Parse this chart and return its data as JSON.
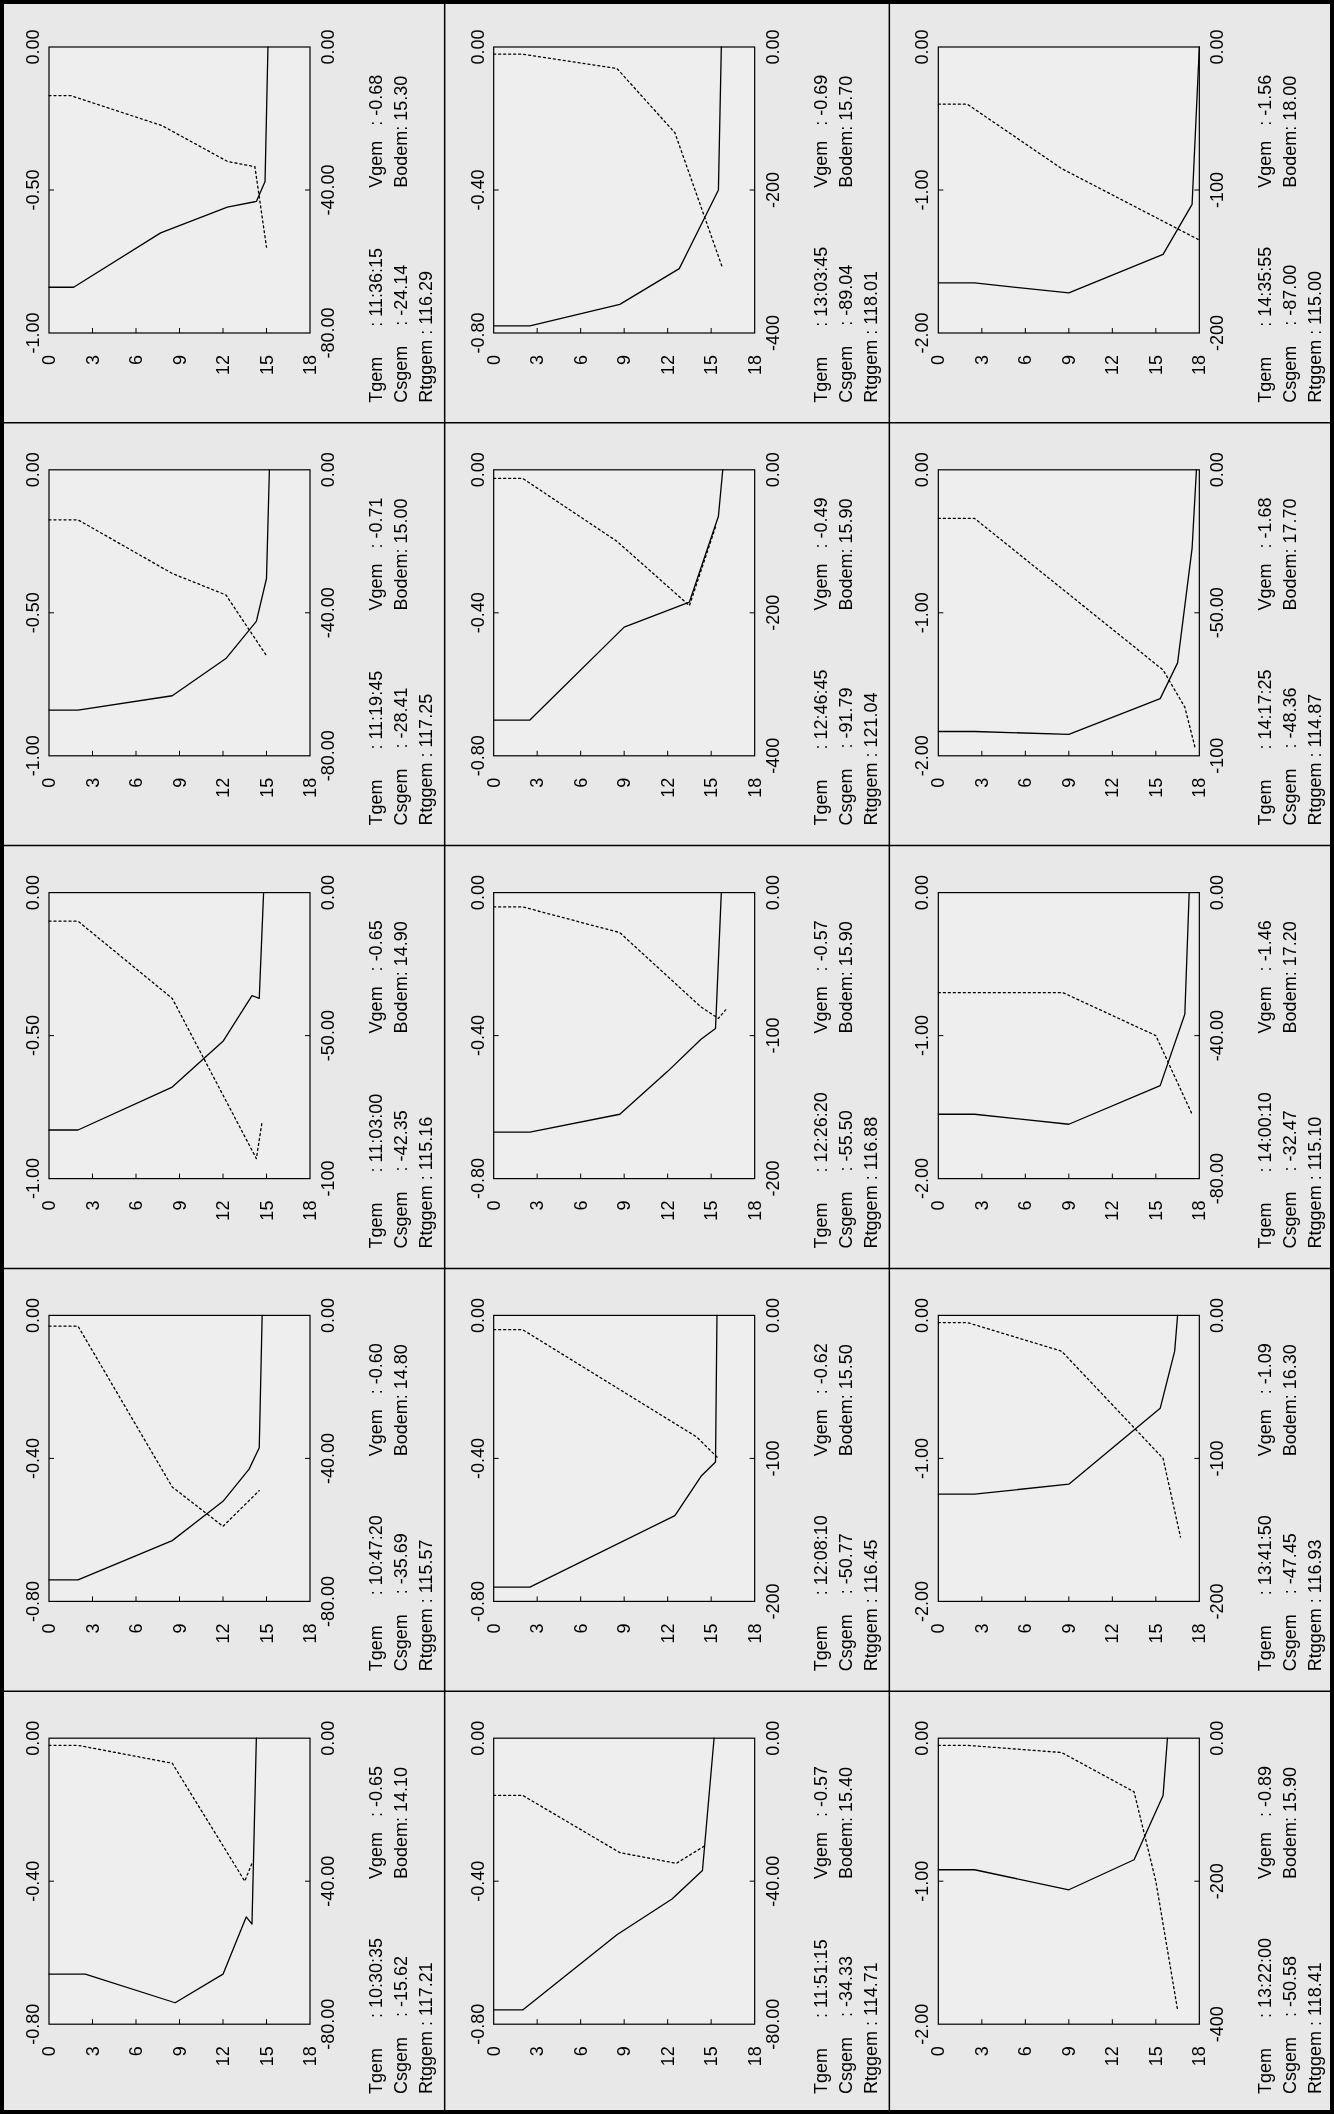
{
  "chart_data": [
    {
      "type": "line",
      "ylim": [
        -1,
        0
      ],
      "yticks": [
        {
          "value": -1,
          "label": "-1.00"
        },
        {
          "value": -0.5,
          "label": "-0.50"
        },
        {
          "value": 0,
          "label": "0.00"
        }
      ],
      "y2lim": [
        -80,
        0
      ],
      "y2ticks": [
        {
          "value": -80,
          "label": "-80.00"
        },
        {
          "value": -40,
          "label": "-40.00"
        },
        {
          "value": 0,
          "label": "0.00"
        }
      ],
      "xlim": [
        0,
        18
      ],
      "xticks": [
        0,
        3,
        6,
        9,
        12,
        15,
        18
      ],
      "series": [
        {
          "axis": "y",
          "color": "#000000",
          "line_style": "solid",
          "x": [
            0,
            1.7,
            7.7,
            12.3,
            14.3,
            14.9,
            15.1
          ],
          "values": [
            -0.84,
            -0.84,
            -0.65,
            -0.56,
            -0.54,
            -0.47,
            0
          ]
        },
        {
          "axis": "y2",
          "color": "#000000",
          "line_style": "dotted",
          "x": [
            0,
            1.5,
            7.8,
            12.3,
            14.2,
            15
          ],
          "values": [
            -13.6,
            -13.6,
            -22,
            -32,
            -33.5,
            -56
          ]
        }
      ],
      "annotations": [
        "Tgem      : 11:36:15",
        "Vgem   : -0.68",
        "Csgem    : -24.14",
        "Bodem: 15.30",
        "Rtggem : 116.29"
      ]
    },
    {
      "type": "line",
      "ylim": [
        -0.8,
        0
      ],
      "yticks": [
        {
          "value": -0.8,
          "label": "-0.80"
        },
        {
          "value": -0.4,
          "label": "-0.40"
        },
        {
          "value": 0,
          "label": "0.00"
        }
      ],
      "y2lim": [
        -400,
        0
      ],
      "y2ticks": [
        -400,
        -200,
        {
          "value": 0,
          "label": "0.00"
        }
      ],
      "xlim": [
        0,
        18
      ],
      "xticks": [
        0,
        3,
        6,
        9,
        12,
        15,
        18
      ],
      "series": [
        {
          "axis": "y",
          "color": "#000000",
          "line_style": "solid",
          "x": [
            0,
            2.5,
            8.7,
            12.8,
            15.5,
            15.7
          ],
          "values": [
            -0.78,
            -0.78,
            -0.72,
            -0.62,
            -0.4,
            0
          ]
        },
        {
          "axis": "y2",
          "color": "#000000",
          "line_style": "dotted",
          "x": [
            0,
            2,
            8.5,
            12.5,
            15.8
          ],
          "values": [
            -10,
            -10,
            -30,
            -120,
            -310
          ]
        }
      ],
      "annotations": [
        "Tgem      : 13:03:45",
        "Vgem   : -0.69",
        "Csgem    : -89.04",
        "Bodem: 15.70",
        "Rtggem : 118.01"
      ]
    },
    {
      "type": "line",
      "ylim": [
        -2,
        0
      ],
      "yticks": [
        {
          "value": -2,
          "label": "-2.00"
        },
        {
          "value": -1,
          "label": "-1.00"
        },
        {
          "value": 0,
          "label": "0.00"
        }
      ],
      "y2lim": [
        -200,
        0
      ],
      "y2ticks": [
        -200,
        -100,
        {
          "value": 0,
          "label": "0.00"
        }
      ],
      "xlim": [
        0,
        18
      ],
      "xticks": [
        0,
        3,
        6,
        9,
        12,
        15,
        18
      ],
      "series": [
        {
          "axis": "y",
          "color": "#000000",
          "line_style": "solid",
          "x": [
            0,
            2.5,
            9,
            15.5,
            17.5,
            18
          ],
          "values": [
            -1.65,
            -1.65,
            -1.72,
            -1.45,
            -1.1,
            0
          ]
        },
        {
          "axis": "y2",
          "color": "#000000",
          "line_style": "dotted",
          "x": [
            0,
            2,
            8.5,
            18
          ],
          "values": [
            -40,
            -40,
            -85,
            -135
          ]
        }
      ],
      "annotations": [
        "Tgem      : 14:35:55",
        "Vgem   : -1.56",
        "Csgem    : -87.00",
        "Bodem: 18.00",
        "Rtggem : 115.00"
      ]
    },
    {
      "type": "line",
      "ylim": [
        -1,
        0
      ],
      "yticks": [
        {
          "value": -1,
          "label": "-1.00"
        },
        {
          "value": -0.5,
          "label": "-0.50"
        },
        {
          "value": 0,
          "label": "0.00"
        }
      ],
      "y2lim": [
        -80,
        0
      ],
      "y2ticks": [
        {
          "value": -80,
          "label": "-80.00"
        },
        {
          "value": -40,
          "label": "-40.00"
        },
        {
          "value": 0,
          "label": "0.00"
        }
      ],
      "xlim": [
        0,
        18
      ],
      "xticks": [
        0,
        3,
        6,
        9,
        12,
        15,
        18
      ],
      "series": [
        {
          "axis": "y",
          "color": "#000000",
          "line_style": "solid",
          "x": [
            0,
            2,
            8.5,
            12.2,
            14.3,
            15,
            15.2
          ],
          "values": [
            -0.84,
            -0.84,
            -0.79,
            -0.66,
            -0.53,
            -0.38,
            0
          ]
        },
        {
          "axis": "y2",
          "color": "#000000",
          "line_style": "dotted",
          "x": [
            0,
            2,
            8.5,
            12.2,
            15
          ],
          "values": [
            -14,
            -14,
            -29,
            -35,
            -52
          ]
        }
      ],
      "annotations": [
        "Tgem      : 11:19:45",
        "Vgem   : -0.71",
        "Csgem    : -28.41",
        "Bodem: 15.00",
        "Rtggem : 117.25"
      ]
    },
    {
      "type": "line",
      "ylim": [
        -0.8,
        0
      ],
      "yticks": [
        {
          "value": -0.8,
          "label": "-0.80"
        },
        {
          "value": -0.4,
          "label": "-0.40"
        },
        {
          "value": 0,
          "label": "0.00"
        }
      ],
      "y2lim": [
        -400,
        0
      ],
      "y2ticks": [
        -400,
        -200,
        {
          "value": 0,
          "label": "0.00"
        }
      ],
      "xlim": [
        0,
        18
      ],
      "xticks": [
        0,
        3,
        6,
        9,
        12,
        15,
        18
      ],
      "series": [
        {
          "axis": "y",
          "color": "#000000",
          "line_style": "solid",
          "x": [
            0,
            2.5,
            9,
            13.5,
            15.5,
            15.8
          ],
          "values": [
            -0.7,
            -0.7,
            -0.44,
            -0.37,
            -0.13,
            0
          ]
        },
        {
          "axis": "y2",
          "color": "#000000",
          "line_style": "dotted",
          "x": [
            0,
            2,
            8.5,
            13.5,
            15.3
          ],
          "values": [
            -12,
            -12,
            -100,
            -190,
            -80
          ]
        }
      ],
      "annotations": [
        "Tgem      : 12:46:45",
        "Vgem   : -0.49",
        "Csgem    : -91.79",
        "Bodem: 15.90",
        "Rtggem : 121.04"
      ]
    },
    {
      "type": "line",
      "ylim": [
        -2,
        0
      ],
      "yticks": [
        {
          "value": -2,
          "label": "-2.00"
        },
        {
          "value": -1,
          "label": "-1.00"
        },
        {
          "value": 0,
          "label": "0.00"
        }
      ],
      "y2lim": [
        -100,
        0
      ],
      "y2ticks": [
        -100,
        {
          "value": -50,
          "label": "-50.00"
        },
        {
          "value": 0,
          "label": "0.00"
        }
      ],
      "xlim": [
        0,
        18
      ],
      "xticks": [
        0,
        3,
        6,
        9,
        12,
        15,
        18
      ],
      "series": [
        {
          "axis": "y",
          "color": "#000000",
          "line_style": "solid",
          "x": [
            0,
            2.5,
            9,
            15.3,
            16.5,
            17.5,
            17.8
          ],
          "values": [
            -1.83,
            -1.83,
            -1.85,
            -1.6,
            -1.35,
            -0.55,
            0
          ]
        },
        {
          "axis": "y2",
          "color": "#000000",
          "line_style": "dotted",
          "x": [
            0,
            2.5,
            15.5,
            17,
            17.7
          ],
          "values": [
            -17,
            -17,
            -70,
            -83,
            -97
          ]
        }
      ],
      "annotations": [
        "Tgem      : 14:17:25",
        "Vgem   : -1.68",
        "Csgem    : -48.36",
        "Bodem: 17.70",
        "Rtggem : 114.87"
      ]
    },
    {
      "type": "line",
      "ylim": [
        -1,
        0
      ],
      "yticks": [
        {
          "value": -1,
          "label": "-1.00"
        },
        {
          "value": -0.5,
          "label": "-0.50"
        },
        {
          "value": 0,
          "label": "0.00"
        }
      ],
      "y2lim": [
        -100,
        0
      ],
      "y2ticks": [
        -100,
        {
          "value": -50,
          "label": "-50.00"
        },
        {
          "value": 0,
          "label": "0.00"
        }
      ],
      "xlim": [
        0,
        18
      ],
      "xticks": [
        0,
        3,
        6,
        9,
        12,
        15,
        18
      ],
      "series": [
        {
          "axis": "y",
          "color": "#000000",
          "line_style": "solid",
          "x": [
            0,
            2,
            8.5,
            12,
            14,
            14.5,
            14.8
          ],
          "values": [
            -0.83,
            -0.83,
            -0.68,
            -0.52,
            -0.36,
            -0.37,
            0
          ]
        },
        {
          "axis": "y2",
          "color": "#000000",
          "line_style": "dotted",
          "x": [
            0,
            2,
            8.5,
            14.3,
            14.7
          ],
          "values": [
            -10,
            -10,
            -37,
            -93,
            -80
          ]
        }
      ],
      "annotations": [
        "Tgem      : 11:03:00",
        "Vgem   : -0.65",
        "Csgem    : -42.35",
        "Bodem: 14.90",
        "Rtggem : 115.16"
      ]
    },
    {
      "type": "line",
      "ylim": [
        -0.8,
        0
      ],
      "yticks": [
        {
          "value": -0.8,
          "label": "-0.80"
        },
        {
          "value": -0.4,
          "label": "-0.40"
        },
        {
          "value": 0,
          "label": "0.00"
        }
      ],
      "y2lim": [
        -200,
        0
      ],
      "y2ticks": [
        -200,
        -100,
        {
          "value": 0,
          "label": "0.00"
        }
      ],
      "xlim": [
        0,
        18
      ],
      "xticks": [
        0,
        3,
        6,
        9,
        12,
        15,
        18
      ],
      "series": [
        {
          "axis": "y",
          "color": "#000000",
          "line_style": "solid",
          "x": [
            0,
            2.5,
            8.7,
            12,
            14.3,
            15.3,
            15.7
          ],
          "values": [
            -0.67,
            -0.67,
            -0.62,
            -0.5,
            -0.41,
            -0.38,
            0
          ]
        },
        {
          "axis": "y2",
          "color": "#000000",
          "line_style": "dotted",
          "x": [
            0,
            2,
            8.7,
            14.3,
            15.5,
            16
          ],
          "values": [
            -10,
            -10,
            -28,
            -80,
            -88,
            -82
          ]
        }
      ],
      "annotations": [
        "Tgem      : 12:26:20",
        "Vgem   : -0.57",
        "Csgem    : -55.50",
        "Bodem: 15.90",
        "Rtggem : 116.88"
      ]
    },
    {
      "type": "line",
      "ylim": [
        -2,
        0
      ],
      "yticks": [
        {
          "value": -2,
          "label": "-2.00"
        },
        {
          "value": -1,
          "label": "-1.00"
        },
        {
          "value": 0,
          "label": "0.00"
        }
      ],
      "y2lim": [
        -80,
        0
      ],
      "y2ticks": [
        {
          "value": -80,
          "label": "-80.00"
        },
        {
          "value": -40,
          "label": "-40.00"
        },
        {
          "value": 0,
          "label": "0.00"
        }
      ],
      "xlim": [
        0,
        18
      ],
      "xticks": [
        0,
        3,
        6,
        9,
        12,
        15,
        18
      ],
      "series": [
        {
          "axis": "y",
          "color": "#000000",
          "line_style": "solid",
          "x": [
            0,
            2.5,
            9,
            15.3,
            17,
            17.3
          ],
          "values": [
            -1.55,
            -1.55,
            -1.62,
            -1.35,
            -0.85,
            0
          ]
        },
        {
          "axis": "y2",
          "color": "#000000",
          "line_style": "dotted",
          "x": [
            0,
            8.6,
            15,
            17.5
          ],
          "values": [
            -28,
            -28,
            -40,
            -62
          ]
        }
      ],
      "annotations": [
        "Tgem      : 14:00:10",
        "Vgem   : -1.46",
        "Csgem    : -32.47",
        "Bodem: 17.20",
        "Rtggem : 115.10"
      ]
    },
    {
      "type": "line",
      "ylim": [
        -0.8,
        0
      ],
      "yticks": [
        {
          "value": -0.8,
          "label": "-0.80"
        },
        {
          "value": -0.4,
          "label": "-0.40"
        },
        {
          "value": 0,
          "label": "0.00"
        }
      ],
      "y2lim": [
        -80,
        0
      ],
      "y2ticks": [
        {
          "value": -80,
          "label": "-80.00"
        },
        {
          "value": -40,
          "label": "-40.00"
        },
        {
          "value": 0,
          "label": "0.00"
        }
      ],
      "xlim": [
        0,
        18
      ],
      "xticks": [
        0,
        3,
        6,
        9,
        12,
        15,
        18
      ],
      "series": [
        {
          "axis": "y",
          "color": "#000000",
          "line_style": "solid",
          "x": [
            0,
            2,
            8.5,
            12,
            13.8,
            14.5,
            14.7
          ],
          "values": [
            -0.74,
            -0.74,
            -0.63,
            -0.52,
            -0.43,
            -0.37,
            0
          ]
        },
        {
          "axis": "y2",
          "color": "#000000",
          "line_style": "dotted",
          "x": [
            0,
            2,
            8.5,
            12,
            14.5
          ],
          "values": [
            -3,
            -3,
            -48,
            -59,
            -49
          ]
        }
      ],
      "annotations": [
        "Tgem      : 10:47:20",
        "Vgem   : -0.60",
        "Csgem    : -35.69",
        "Bodem: 14.80",
        "Rtggem : 115.57"
      ]
    },
    {
      "type": "line",
      "ylim": [
        -0.8,
        0
      ],
      "yticks": [
        {
          "value": -0.8,
          "label": "-0.80"
        },
        {
          "value": -0.4,
          "label": "-0.40"
        },
        {
          "value": 0,
          "label": "0.00"
        }
      ],
      "y2lim": [
        -200,
        0
      ],
      "y2ticks": [
        -200,
        -100,
        {
          "value": 0,
          "label": "0.00"
        }
      ],
      "xlim": [
        0,
        18
      ],
      "xticks": [
        0,
        3,
        6,
        9,
        12,
        15,
        18
      ],
      "series": [
        {
          "axis": "y",
          "color": "#000000",
          "line_style": "solid",
          "x": [
            0,
            2.5,
            12.5,
            14.3,
            15.3,
            15.4
          ],
          "values": [
            -0.76,
            -0.76,
            -0.56,
            -0.45,
            -0.41,
            0
          ]
        },
        {
          "axis": "y2",
          "color": "#000000",
          "line_style": "dotted",
          "x": [
            0,
            2,
            14,
            15,
            15.5
          ],
          "values": [
            -10,
            -10,
            -85,
            -95,
            -100
          ]
        }
      ],
      "annotations": [
        "Tgem      : 12:08:10",
        "Vgem   : -0.62",
        "Csgem    : -50.77",
        "Bodem: 15.50",
        "Rtggem : 116.45"
      ]
    },
    {
      "type": "line",
      "ylim": [
        -2,
        0
      ],
      "yticks": [
        {
          "value": -2,
          "label": "-2.00"
        },
        {
          "value": -1,
          "label": "-1.00"
        },
        {
          "value": 0,
          "label": "0.00"
        }
      ],
      "y2lim": [
        -200,
        0
      ],
      "y2ticks": [
        -200,
        -100,
        {
          "value": 0,
          "label": "0.00"
        }
      ],
      "xlim": [
        0,
        18
      ],
      "xticks": [
        0,
        3,
        6,
        9,
        12,
        15,
        18
      ],
      "series": [
        {
          "axis": "y",
          "color": "#000000",
          "line_style": "solid",
          "x": [
            0,
            2.5,
            9,
            15.3,
            16.3,
            16.5
          ],
          "values": [
            -1.25,
            -1.25,
            -1.18,
            -0.65,
            -0.25,
            0
          ]
        },
        {
          "axis": "y2",
          "color": "#000000",
          "line_style": "dotted",
          "x": [
            0,
            2,
            8.5,
            15.5,
            16.7
          ],
          "values": [
            -5,
            -5,
            -25,
            -100,
            -155
          ]
        }
      ],
      "annotations": [
        "Tgem      : 13:41:50",
        "Vgem   : -1.09",
        "Csgem    : -47.45",
        "Bodem: 16.30",
        "Rtggem : 116.93"
      ]
    },
    {
      "type": "line",
      "ylim": [
        -0.8,
        0
      ],
      "yticks": [
        {
          "value": -0.8,
          "label": "-0.80"
        },
        {
          "value": -0.4,
          "label": "-0.40"
        },
        {
          "value": 0,
          "label": "0.00"
        }
      ],
      "y2lim": [
        -80,
        0
      ],
      "y2ticks": [
        {
          "value": -80,
          "label": "-80.00"
        },
        {
          "value": -40,
          "label": "-40.00"
        },
        {
          "value": 0,
          "label": "0.00"
        }
      ],
      "xlim": [
        0,
        18
      ],
      "xticks": [
        0,
        3,
        6,
        9,
        12,
        15,
        18
      ],
      "series": [
        {
          "axis": "y",
          "color": "#000000",
          "line_style": "solid",
          "x": [
            0,
            2.5,
            8.7,
            12,
            13.6,
            14,
            14.3
          ],
          "values": [
            -0.66,
            -0.66,
            -0.74,
            -0.66,
            -0.5,
            -0.52,
            0
          ]
        },
        {
          "axis": "y2",
          "color": "#000000",
          "line_style": "dotted",
          "x": [
            0,
            2,
            8.5,
            13.5,
            14
          ],
          "values": [
            -2,
            -2,
            -7,
            -40,
            -35
          ]
        }
      ],
      "annotations": [
        "Tgem      : 10:30:35",
        "Vgem   : -0.65",
        "Csgem    : -15.62",
        "Bodem: 14.10",
        "Rtggem : 117.21"
      ]
    },
    {
      "type": "line",
      "ylim": [
        -0.8,
        0
      ],
      "yticks": [
        {
          "value": -0.8,
          "label": "-0.80"
        },
        {
          "value": -0.4,
          "label": "-0.40"
        },
        {
          "value": 0,
          "label": "0.00"
        }
      ],
      "y2lim": [
        -80,
        0
      ],
      "y2ticks": [
        {
          "value": -80,
          "label": "-80.00"
        },
        {
          "value": -40,
          "label": "-40.00"
        },
        {
          "value": 0,
          "label": "0.00"
        }
      ],
      "xlim": [
        0,
        18
      ],
      "xticks": [
        0,
        3,
        6,
        9,
        12,
        15,
        18
      ],
      "series": [
        {
          "axis": "y",
          "color": "#000000",
          "line_style": "solid",
          "x": [
            0,
            2,
            8.5,
            12.3,
            14.4,
            15.2
          ],
          "values": [
            -0.76,
            -0.76,
            -0.55,
            -0.45,
            -0.37,
            0
          ]
        },
        {
          "axis": "y2",
          "color": "#000000",
          "line_style": "dotted",
          "x": [
            0,
            2,
            8.7,
            12.6,
            14.6
          ],
          "values": [
            -16,
            -16,
            -32,
            -35,
            -30
          ]
        }
      ],
      "annotations": [
        "Tgem      : 11:51:15",
        "Vgem   : -0.57",
        "Csgem    : -34.33",
        "Bodem: 15.40",
        "Rtggem : 114.71"
      ]
    },
    {
      "type": "line",
      "ylim": [
        -2,
        0
      ],
      "yticks": [
        {
          "value": -2,
          "label": "-2.00"
        },
        {
          "value": -1,
          "label": "-1.00"
        },
        {
          "value": 0,
          "label": "0.00"
        }
      ],
      "y2lim": [
        -400,
        0
      ],
      "y2ticks": [
        -400,
        -200,
        {
          "value": 0,
          "label": "0.00"
        }
      ],
      "xlim": [
        0,
        18
      ],
      "xticks": [
        0,
        3,
        6,
        9,
        12,
        15,
        18
      ],
      "series": [
        {
          "axis": "y",
          "color": "#000000",
          "line_style": "solid",
          "x": [
            0,
            2.5,
            9,
            13.5,
            15.5,
            15.8
          ],
          "values": [
            -0.92,
            -0.92,
            -1.06,
            -0.85,
            -0.4,
            0
          ]
        },
        {
          "axis": "y2",
          "color": "#000000",
          "line_style": "dotted",
          "x": [
            0,
            2,
            8.5,
            13.5,
            15,
            16.5
          ],
          "values": [
            -10,
            -10,
            -20,
            -75,
            -200,
            -380
          ]
        }
      ],
      "annotations": [
        "Tgem      : 13:22:00",
        "Vgem   : -0.89",
        "Csgem    : -50.58",
        "Bodem: 15.90",
        "Rtggem : 118.41"
      ]
    }
  ]
}
